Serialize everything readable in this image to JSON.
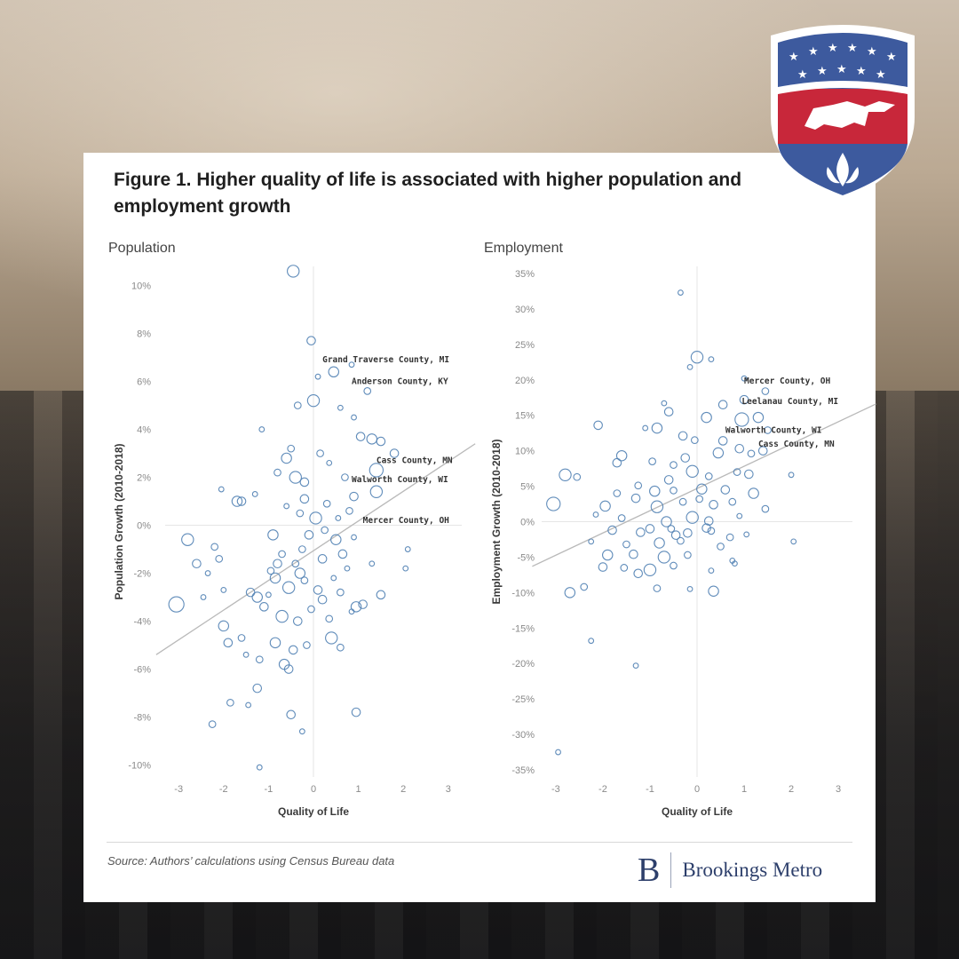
{
  "figure": {
    "title": "Figure 1. Higher quality of life is associated with higher population and employment growth",
    "source": "Source: Authors’ calculations using Census Bureau data",
    "brand_letter": "B",
    "brand_name": "Brookings Metro"
  },
  "colors": {
    "marker": "#4f7fb3",
    "trend": "#b9b9b9",
    "brand": "#2d3f6b"
  },
  "chart_data": [
    {
      "type": "scatter",
      "title": "Population",
      "xlabel": "Quality of Life",
      "ylabel": "Population Growth (2010-2018)",
      "xlim": [
        -3.3,
        3.3
      ],
      "ylim": [
        -10.5,
        10.8
      ],
      "xticks": [
        -3,
        -2,
        -1,
        0,
        1,
        2,
        3
      ],
      "yticks": [
        -10,
        -8,
        -6,
        -4,
        -2,
        0,
        2,
        4,
        6,
        8,
        10
      ],
      "ytick_suffix": "%",
      "trendline": {
        "x": [
          -3.5,
          3.6
        ],
        "y": [
          -5.4,
          3.4
        ]
      },
      "annotations": [
        {
          "text": "Grand Traverse County, MI",
          "x": 0.2,
          "y": 6.8
        },
        {
          "text": "Anderson County, KY",
          "x": 0.85,
          "y": 5.9
        },
        {
          "text": "Cass County, MN",
          "x": 1.4,
          "y": 2.6
        },
        {
          "text": "Walworth County, WI",
          "x": 0.85,
          "y": 1.8
        },
        {
          "text": "Mercer County, OH",
          "x": 1.1,
          "y": 0.1
        }
      ],
      "points": [
        [
          -0.45,
          10.6,
          7
        ],
        [
          -0.05,
          7.7,
          5
        ],
        [
          0.45,
          6.4,
          6
        ],
        [
          0.1,
          6.2,
          3
        ],
        [
          1.2,
          5.6,
          4
        ],
        [
          0.85,
          6.7,
          3
        ],
        [
          -0.35,
          5.0,
          4
        ],
        [
          0.0,
          5.2,
          7
        ],
        [
          0.6,
          4.9,
          3
        ],
        [
          -1.15,
          4.0,
          3
        ],
        [
          0.9,
          4.5,
          3
        ],
        [
          1.05,
          3.7,
          5
        ],
        [
          1.3,
          3.6,
          6
        ],
        [
          1.5,
          3.5,
          5
        ],
        [
          1.8,
          3.0,
          5
        ],
        [
          -0.5,
          3.2,
          4
        ],
        [
          -0.6,
          2.8,
          6
        ],
        [
          0.15,
          3.0,
          4
        ],
        [
          0.35,
          2.6,
          3
        ],
        [
          -0.8,
          2.2,
          4
        ],
        [
          -0.4,
          2.0,
          7
        ],
        [
          -0.2,
          1.8,
          5
        ],
        [
          0.7,
          2.0,
          4
        ],
        [
          1.4,
          2.3,
          8
        ],
        [
          0.9,
          1.2,
          5
        ],
        [
          1.4,
          1.4,
          7
        ],
        [
          -2.05,
          1.5,
          3
        ],
        [
          -1.7,
          1.0,
          6
        ],
        [
          -1.6,
          1.0,
          5
        ],
        [
          -1.3,
          1.3,
          3
        ],
        [
          0.05,
          0.3,
          7
        ],
        [
          0.3,
          0.9,
          4
        ],
        [
          -0.3,
          0.5,
          4
        ],
        [
          0.55,
          0.3,
          3
        ],
        [
          -0.1,
          -0.4,
          5
        ],
        [
          0.5,
          -0.6,
          6
        ],
        [
          -2.8,
          -0.6,
          7
        ],
        [
          -2.6,
          -1.6,
          5
        ],
        [
          -2.2,
          -0.9,
          4
        ],
        [
          -2.1,
          -1.4,
          4
        ],
        [
          -2.35,
          -2.0,
          3
        ],
        [
          -0.9,
          -0.4,
          6
        ],
        [
          -0.7,
          -1.2,
          4
        ],
        [
          -0.4,
          -1.6,
          4
        ],
        [
          -0.25,
          -1.0,
          4
        ],
        [
          0.2,
          -1.4,
          5
        ],
        [
          0.75,
          -1.8,
          3
        ],
        [
          1.3,
          -1.6,
          3
        ],
        [
          2.1,
          -1.0,
          3
        ],
        [
          2.05,
          -1.8,
          3
        ],
        [
          -0.85,
          -2.2,
          6
        ],
        [
          -0.55,
          -2.6,
          7
        ],
        [
          -0.2,
          -2.3,
          4
        ],
        [
          0.1,
          -2.7,
          5
        ],
        [
          0.45,
          -2.2,
          3
        ],
        [
          -1.4,
          -2.8,
          5
        ],
        [
          -1.25,
          -3.0,
          6
        ],
        [
          -2.0,
          -2.7,
          3
        ],
        [
          -2.0,
          -4.2,
          6
        ],
        [
          -2.45,
          -3.0,
          3
        ],
        [
          -3.05,
          -3.3,
          9
        ],
        [
          -1.1,
          -3.4,
          5
        ],
        [
          -0.7,
          -3.8,
          7
        ],
        [
          -0.35,
          -4.0,
          5
        ],
        [
          -0.05,
          -3.5,
          4
        ],
        [
          0.35,
          -3.9,
          4
        ],
        [
          0.95,
          -3.4,
          6
        ],
        [
          1.1,
          -3.3,
          5
        ],
        [
          1.5,
          -2.9,
          5
        ],
        [
          0.85,
          -3.6,
          3
        ],
        [
          -1.9,
          -4.9,
          5
        ],
        [
          -1.6,
          -4.7,
          4
        ],
        [
          -1.5,
          -5.4,
          3
        ],
        [
          -0.85,
          -4.9,
          6
        ],
        [
          -0.45,
          -5.2,
          5
        ],
        [
          -0.15,
          -5.0,
          4
        ],
        [
          0.4,
          -4.7,
          7
        ],
        [
          0.6,
          -5.1,
          4
        ],
        [
          -1.2,
          -5.6,
          4
        ],
        [
          -0.65,
          -5.8,
          6
        ],
        [
          -0.55,
          -6.0,
          5
        ],
        [
          -1.25,
          -6.8,
          5
        ],
        [
          -1.85,
          -7.4,
          4
        ],
        [
          -2.25,
          -8.3,
          4
        ],
        [
          -1.45,
          -7.5,
          3
        ],
        [
          -0.5,
          -7.9,
          5
        ],
        [
          -0.25,
          -8.6,
          3
        ],
        [
          0.95,
          -7.8,
          5
        ],
        [
          -1.2,
          -10.1,
          3
        ],
        [
          -0.95,
          -1.9,
          4
        ],
        [
          0.65,
          -1.2,
          5
        ],
        [
          0.25,
          -0.2,
          4
        ],
        [
          -0.6,
          0.8,
          3
        ],
        [
          0.8,
          0.6,
          4
        ],
        [
          -1.0,
          -2.9,
          3
        ],
        [
          0.2,
          -3.1,
          5
        ],
        [
          -0.8,
          -1.6,
          5
        ],
        [
          0.6,
          -2.8,
          4
        ],
        [
          -0.3,
          -2.0,
          6
        ],
        [
          0.9,
          -0.5,
          3
        ],
        [
          -0.2,
          1.1,
          5
        ]
      ]
    },
    {
      "type": "scatter",
      "title": "Employment",
      "xlabel": "Quality of Life",
      "ylabel": "Employment Growth (2010-2018)",
      "xlim": [
        -3.3,
        3.3
      ],
      "ylim": [
        -36,
        36
      ],
      "xticks": [
        -3,
        -2,
        -1,
        0,
        1,
        2,
        3
      ],
      "yticks": [
        -35,
        -30,
        -25,
        -20,
        -15,
        -10,
        -5,
        0,
        5,
        10,
        15,
        20,
        25,
        30,
        35
      ],
      "ytick_suffix": "%",
      "trendline": {
        "x": [
          -3.5,
          3.8
        ],
        "y": [
          -6.3,
          16.6
        ]
      },
      "annotations": [
        {
          "text": "Mercer County, OH",
          "x": 1.0,
          "y": 19.5
        },
        {
          "text": "Leelanau County, MI",
          "x": 0.95,
          "y": 16.6
        },
        {
          "text": "Walworth County, WI",
          "x": 0.6,
          "y": 12.5
        },
        {
          "text": "Cass County, MN",
          "x": 1.3,
          "y": 10.6
        }
      ],
      "points": [
        [
          -0.35,
          32.3,
          3
        ],
        [
          0.0,
          23.2,
          7
        ],
        [
          0.3,
          22.9,
          3
        ],
        [
          -0.15,
          21.8,
          3
        ],
        [
          1.0,
          20.2,
          3
        ],
        [
          1.45,
          18.4,
          4
        ],
        [
          0.55,
          16.5,
          5
        ],
        [
          1.0,
          17.2,
          5
        ],
        [
          -0.7,
          16.7,
          3
        ],
        [
          -0.6,
          15.5,
          5
        ],
        [
          -1.1,
          13.2,
          3
        ],
        [
          -2.1,
          13.6,
          5
        ],
        [
          0.2,
          14.7,
          6
        ],
        [
          0.95,
          14.4,
          8
        ],
        [
          1.3,
          14.7,
          6
        ],
        [
          1.5,
          12.9,
          4
        ],
        [
          -0.85,
          13.2,
          6
        ],
        [
          -0.3,
          12.1,
          5
        ],
        [
          -0.05,
          11.5,
          4
        ],
        [
          0.55,
          11.4,
          5
        ],
        [
          0.9,
          10.3,
          5
        ],
        [
          1.4,
          10.0,
          5
        ],
        [
          -1.6,
          9.3,
          6
        ],
        [
          -1.7,
          8.3,
          5
        ],
        [
          -0.5,
          8.0,
          4
        ],
        [
          -0.1,
          7.1,
          7
        ],
        [
          0.25,
          6.4,
          4
        ],
        [
          0.85,
          7.0,
          4
        ],
        [
          1.1,
          6.7,
          5
        ],
        [
          2.0,
          6.6,
          3
        ],
        [
          -2.8,
          6.6,
          7
        ],
        [
          -2.55,
          6.3,
          4
        ],
        [
          -1.25,
          5.1,
          4
        ],
        [
          -0.9,
          4.3,
          6
        ],
        [
          -0.5,
          4.4,
          4
        ],
        [
          0.1,
          4.6,
          6
        ],
        [
          0.6,
          4.5,
          5
        ],
        [
          1.2,
          4.0,
          6
        ],
        [
          -3.05,
          2.5,
          8
        ],
        [
          -1.95,
          2.2,
          6
        ],
        [
          -1.3,
          3.3,
          5
        ],
        [
          -0.85,
          2.1,
          7
        ],
        [
          -0.3,
          2.8,
          4
        ],
        [
          0.35,
          2.4,
          5
        ],
        [
          0.75,
          2.8,
          4
        ],
        [
          1.45,
          1.8,
          4
        ],
        [
          -2.15,
          1.0,
          3
        ],
        [
          -1.6,
          0.5,
          4
        ],
        [
          -0.65,
          0.0,
          6
        ],
        [
          -0.1,
          0.6,
          7
        ],
        [
          0.25,
          0.1,
          5
        ],
        [
          0.9,
          0.8,
          3
        ],
        [
          -1.8,
          -1.2,
          5
        ],
        [
          -1.2,
          -1.5,
          5
        ],
        [
          -0.55,
          -1.0,
          4
        ],
        [
          -0.2,
          -1.6,
          5
        ],
        [
          0.3,
          -1.3,
          4
        ],
        [
          1.05,
          -1.8,
          3
        ],
        [
          2.05,
          -2.8,
          3
        ],
        [
          -2.25,
          -2.8,
          3
        ],
        [
          -1.5,
          -3.2,
          4
        ],
        [
          -0.8,
          -3.0,
          6
        ],
        [
          -0.35,
          -2.7,
          4
        ],
        [
          0.5,
          -3.5,
          4
        ],
        [
          -1.9,
          -4.7,
          6
        ],
        [
          -1.35,
          -4.6,
          5
        ],
        [
          -0.7,
          -5.0,
          7
        ],
        [
          -0.2,
          -4.7,
          4
        ],
        [
          0.75,
          -5.5,
          3
        ],
        [
          -2.0,
          -6.4,
          5
        ],
        [
          -1.55,
          -6.5,
          4
        ],
        [
          -1.0,
          -6.8,
          7
        ],
        [
          -0.5,
          -6.2,
          4
        ],
        [
          0.3,
          -6.9,
          3
        ],
        [
          -2.4,
          -9.2,
          4
        ],
        [
          -2.7,
          -10.0,
          6
        ],
        [
          -1.25,
          -7.3,
          5
        ],
        [
          -0.85,
          -9.4,
          4
        ],
        [
          -0.15,
          -9.5,
          3
        ],
        [
          0.35,
          -9.8,
          6
        ],
        [
          -2.25,
          -16.8,
          3
        ],
        [
          -1.3,
          -20.3,
          3
        ],
        [
          -2.95,
          -32.5,
          3
        ],
        [
          0.8,
          -5.9,
          3
        ],
        [
          -0.45,
          -1.9,
          5
        ],
        [
          0.05,
          3.2,
          4
        ],
        [
          -0.95,
          8.5,
          4
        ],
        [
          0.45,
          9.7,
          6
        ],
        [
          -1.7,
          4.0,
          4
        ],
        [
          0.2,
          -0.9,
          5
        ],
        [
          -0.6,
          5.9,
          5
        ],
        [
          0.7,
          -2.2,
          4
        ],
        [
          -0.25,
          9.0,
          5
        ],
        [
          1.15,
          9.6,
          4
        ],
        [
          -1.0,
          -1.0,
          5
        ]
      ]
    }
  ]
}
